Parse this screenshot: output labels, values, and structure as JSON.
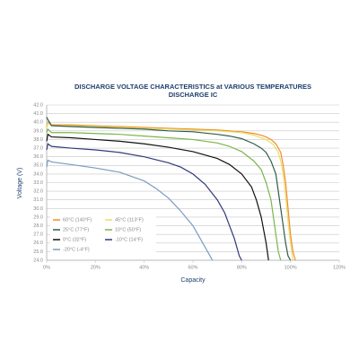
{
  "chart_data": {
    "type": "line",
    "title": "DISCHARGE VOLTAGE CHARACTERISTICS at VARIOUS TEMPERATURES",
    "subtitle": "DISCHARGE IC",
    "x_label": "Capacity",
    "y_label": "Voltage (V)",
    "xlim": [
      0,
      120
    ],
    "xticks": [
      {
        "value": 0,
        "label": "0%"
      },
      {
        "value": 20,
        "label": "20%"
      },
      {
        "value": 40,
        "label": "40%"
      },
      {
        "value": 60,
        "label": "60%"
      },
      {
        "value": 80,
        "label": "80%"
      },
      {
        "value": 100,
        "label": "100%"
      },
      {
        "value": 120,
        "label": "120%"
      }
    ],
    "ylim": [
      24,
      42
    ],
    "yticks": [
      {
        "value": 24,
        "label": "24.0"
      },
      {
        "value": 25,
        "label": "25.0"
      },
      {
        "value": 26,
        "label": "26.0"
      },
      {
        "value": 27,
        "label": "27.0"
      },
      {
        "value": 28,
        "label": "28.0"
      },
      {
        "value": 29,
        "label": "29.0"
      },
      {
        "value": 30,
        "label": "30.0"
      },
      {
        "value": 31,
        "label": "31.0"
      },
      {
        "value": 32,
        "label": "32.0"
      },
      {
        "value": 33,
        "label": "33.0"
      },
      {
        "value": 34,
        "label": "34.0"
      },
      {
        "value": 35,
        "label": "35.0"
      },
      {
        "value": 36,
        "label": "36.0"
      },
      {
        "value": 37,
        "label": "37.0"
      },
      {
        "value": 38,
        "label": "38.0"
      },
      {
        "value": 39,
        "label": "39.0"
      },
      {
        "value": 40,
        "label": "40.0"
      },
      {
        "value": 41,
        "label": "41.0"
      },
      {
        "value": 42,
        "label": "42.0"
      }
    ],
    "grid": true,
    "series": [
      {
        "name": "60°C (140°F)",
        "color": "#f28c28",
        "x": [
          0,
          0.5,
          2,
          10,
          20,
          30,
          40,
          50,
          60,
          70,
          80,
          85,
          88,
          90,
          92,
          94,
          96,
          97,
          98,
          99,
          100,
          101,
          102
        ],
        "values": [
          39.4,
          40.0,
          39.7,
          39.7,
          39.6,
          39.5,
          39.4,
          39.3,
          39.2,
          39.1,
          38.9,
          38.7,
          38.5,
          38.3,
          38.0,
          37.5,
          36.5,
          35,
          33,
          30,
          27,
          25,
          24
        ]
      },
      {
        "name": "45°C (113°F)",
        "color": "#e6df6e",
        "x": [
          0,
          0.5,
          2,
          10,
          20,
          30,
          40,
          50,
          60,
          70,
          80,
          85,
          90,
          93,
          95,
          96,
          97,
          98,
          99,
          100,
          101
        ],
        "values": [
          39.3,
          39.9,
          39.6,
          39.6,
          39.5,
          39.4,
          39.3,
          39.2,
          39.1,
          39.0,
          38.8,
          38.5,
          38.0,
          37.4,
          36.5,
          35.5,
          34,
          31.5,
          28.5,
          26,
          24
        ]
      },
      {
        "name": "25°C (77°F)",
        "color": "#2e5d4a",
        "x": [
          0,
          0.5,
          2,
          10,
          20,
          30,
          40,
          50,
          60,
          70,
          75,
          80,
          85,
          88,
          90,
          92,
          94,
          95,
          96,
          97,
          98,
          99,
          100
        ],
        "values": [
          40.6,
          40.3,
          39.6,
          39.5,
          39.4,
          39.3,
          39.2,
          39.0,
          38.9,
          38.6,
          38.4,
          38.1,
          37.5,
          37.0,
          36.5,
          35.5,
          34,
          32,
          30,
          28,
          26,
          24.5,
          24
        ]
      },
      {
        "name": "10°C (50°F)",
        "color": "#7ab648",
        "x": [
          0,
          0.5,
          2,
          10,
          20,
          30,
          40,
          50,
          60,
          70,
          75,
          80,
          85,
          88,
          90,
          92,
          93,
          94,
          95,
          96
        ],
        "values": [
          38.8,
          39.2,
          38.8,
          38.8,
          38.7,
          38.6,
          38.4,
          38.2,
          38.0,
          37.6,
          37.2,
          36.6,
          35.5,
          34.5,
          33,
          31,
          29,
          27,
          25,
          24
        ]
      },
      {
        "name": "0°C (32°F)",
        "color": "#111111",
        "x": [
          0,
          0.5,
          2,
          10,
          20,
          30,
          40,
          50,
          60,
          70,
          75,
          80,
          84,
          86,
          88,
          89,
          90,
          91
        ],
        "values": [
          37.8,
          38.6,
          38.3,
          38.2,
          38.0,
          37.8,
          37.5,
          37.1,
          36.6,
          35.8,
          35.1,
          34.0,
          32.5,
          31,
          29,
          27.5,
          26,
          24
        ]
      },
      {
        "name": "-10°C (14°F)",
        "color": "#2f3a7a",
        "x": [
          0,
          0.5,
          2,
          10,
          20,
          30,
          40,
          50,
          55,
          60,
          65,
          70,
          73,
          75,
          77,
          78,
          79,
          80
        ],
        "values": [
          36.8,
          37.5,
          37.2,
          37.0,
          36.8,
          36.5,
          36.0,
          35.3,
          34.8,
          34.0,
          32.8,
          31,
          29.5,
          28,
          26.5,
          25.5,
          24.5,
          24
        ]
      },
      {
        "name": "-20°C (-4°F)",
        "color": "#7a9cc0",
        "x": [
          0,
          0.5,
          2,
          10,
          20,
          30,
          40,
          45,
          50,
          55,
          60,
          63,
          65,
          67,
          68
        ],
        "values": [
          34.8,
          35.6,
          35.4,
          35.1,
          34.7,
          34.2,
          33.2,
          32.3,
          31.2,
          29.7,
          28,
          26.5,
          25.5,
          24.5,
          24
        ]
      }
    ]
  }
}
